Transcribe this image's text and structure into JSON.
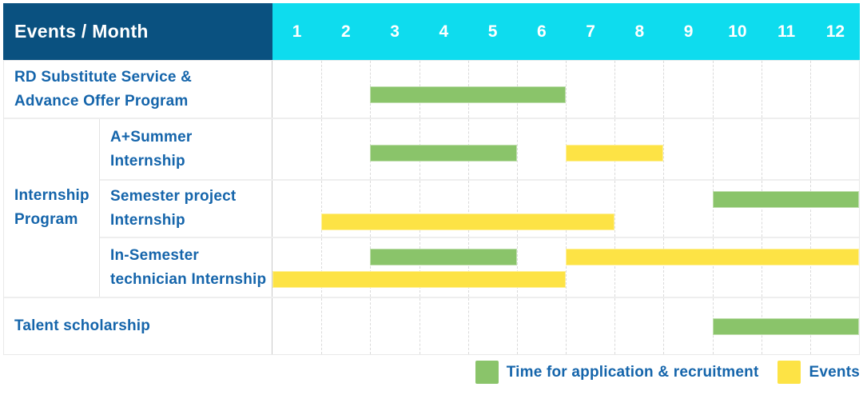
{
  "title_cell": "Events / Month",
  "months": [
    "1",
    "2",
    "3",
    "4",
    "5",
    "6",
    "7",
    "8",
    "9",
    "10",
    "11",
    "12"
  ],
  "colors": {
    "header_bg": "#0a5180",
    "month_bg": "#0edcee",
    "bar_green": "#8ac46a",
    "bar_yellow": "#fde345",
    "label_text": "#1565ab"
  },
  "group": {
    "label_lines": [
      "Internship",
      "Program"
    ]
  },
  "rows": [
    {
      "label_lines": [
        "RD Substitute Service &",
        "Advance Offer Program"
      ],
      "bars": [
        {
          "type": "green",
          "start": 3,
          "end": 6,
          "lane": "low"
        }
      ]
    },
    {
      "label_lines": [
        "A+Summer",
        "Internship"
      ],
      "bars": [
        {
          "type": "green",
          "start": 3,
          "end": 5,
          "lane": "low"
        },
        {
          "type": "yellow",
          "start": 7,
          "end": 8,
          "lane": "low"
        }
      ]
    },
    {
      "label_lines": [
        "Semester project",
        "Internship"
      ],
      "bars": [
        {
          "type": "green",
          "start": 10,
          "end": 12,
          "lane": "upper"
        },
        {
          "type": "yellow",
          "start": 2,
          "end": 7,
          "lane": "lower"
        }
      ]
    },
    {
      "label_lines": [
        "In-Semester",
        "technician Internship"
      ],
      "bars": [
        {
          "type": "green",
          "start": 3,
          "end": 5,
          "lane": "upper"
        },
        {
          "type": "yellow",
          "start": 7,
          "end": 12,
          "lane": "upper"
        },
        {
          "type": "yellow",
          "start": 1,
          "end": 6,
          "lane": "lower"
        }
      ]
    },
    {
      "label_lines": [
        "Talent scholarship",
        ""
      ],
      "bars": [
        {
          "type": "green",
          "start": 10,
          "end": 12,
          "lane": "center"
        }
      ]
    }
  ],
  "legend": [
    {
      "type": "green",
      "label": "Time for application & recruitment"
    },
    {
      "type": "yellow",
      "label": "Events"
    }
  ],
  "chart_data": {
    "type": "bar",
    "subtype": "gantt",
    "title": "Events / Month",
    "xlabel": "Month",
    "x_ticks": [
      1,
      2,
      3,
      4,
      5,
      6,
      7,
      8,
      9,
      10,
      11,
      12
    ],
    "x_range": [
      1,
      12
    ],
    "grid": true,
    "legend_position": "bottom-right",
    "series_legend": [
      "Time for application & recruitment",
      "Events"
    ],
    "series_colors": {
      "Time for application & recruitment": "#8ac46a",
      "Events": "#fde345"
    },
    "rows": [
      {
        "category": "RD Substitute Service & Advance Offer Program",
        "group": null,
        "bars": [
          {
            "series": "Time for application & recruitment",
            "start_month": 3,
            "end_month": 6
          }
        ]
      },
      {
        "category": "A+Summer Internship",
        "group": "Internship Program",
        "bars": [
          {
            "series": "Time for application & recruitment",
            "start_month": 3,
            "end_month": 5
          },
          {
            "series": "Events",
            "start_month": 7,
            "end_month": 8
          }
        ]
      },
      {
        "category": "Semester project Internship",
        "group": "Internship Program",
        "bars": [
          {
            "series": "Time for application & recruitment",
            "start_month": 10,
            "end_month": 12
          },
          {
            "series": "Events",
            "start_month": 2,
            "end_month": 7
          }
        ]
      },
      {
        "category": "In-Semester technician Internship",
        "group": "Internship Program",
        "bars": [
          {
            "series": "Time for application & recruitment",
            "start_month": 3,
            "end_month": 5
          },
          {
            "series": "Events",
            "start_month": 7,
            "end_month": 12
          },
          {
            "series": "Events",
            "start_month": 1,
            "end_month": 6
          }
        ]
      },
      {
        "category": "Talent scholarship",
        "group": null,
        "bars": [
          {
            "series": "Time for application & recruitment",
            "start_month": 10,
            "end_month": 12
          }
        ]
      }
    ]
  }
}
